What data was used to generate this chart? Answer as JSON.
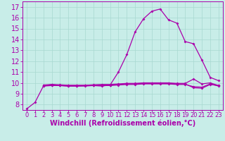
{
  "bg_color": "#c8ede8",
  "grid_color": "#a8d8d0",
  "line_color": "#aa00aa",
  "marker": "D",
  "marker_size": 2.0,
  "linewidth": 0.9,
  "xlim_min": -0.5,
  "xlim_max": 23.5,
  "ylim_min": 7.5,
  "ylim_max": 17.5,
  "xticks": [
    0,
    1,
    2,
    3,
    4,
    5,
    6,
    7,
    8,
    9,
    10,
    11,
    12,
    13,
    14,
    15,
    16,
    17,
    18,
    19,
    20,
    21,
    22,
    23
  ],
  "yticks": [
    8,
    9,
    10,
    11,
    12,
    13,
    14,
    15,
    16,
    17
  ],
  "xlabel": "Windchill (Refroidissement éolien,°C)",
  "xlabel_fontsize": 7,
  "ytick_fontsize": 7,
  "xtick_fontsize": 6,
  "line1_x": [
    0,
    1,
    2,
    3,
    4,
    5,
    6,
    7,
    8,
    9,
    10,
    11,
    12,
    13,
    14,
    15,
    16,
    17,
    18,
    19,
    20,
    21,
    22,
    23
  ],
  "line1_y": [
    7.6,
    8.2,
    9.7,
    9.85,
    9.75,
    9.7,
    9.7,
    9.75,
    9.75,
    9.7,
    9.8,
    11.0,
    12.6,
    14.7,
    15.9,
    16.6,
    16.8,
    15.8,
    15.5,
    13.8,
    13.6,
    12.1,
    10.5,
    10.2
  ],
  "line2_x": [
    2,
    3,
    4,
    5,
    6,
    7,
    8,
    9,
    10,
    11,
    12,
    13,
    14,
    15,
    16,
    17,
    18,
    19,
    20,
    21,
    22,
    23
  ],
  "line2_y": [
    9.7,
    9.75,
    9.75,
    9.7,
    9.7,
    9.7,
    9.75,
    9.75,
    9.75,
    9.8,
    9.85,
    9.85,
    9.9,
    9.9,
    9.9,
    9.9,
    9.85,
    9.85,
    9.65,
    9.6,
    9.9,
    9.7
  ],
  "line3_x": [
    2,
    3,
    4,
    5,
    6,
    7,
    8,
    9,
    10,
    11,
    12,
    13,
    14,
    15,
    16,
    17,
    18,
    19,
    20,
    21,
    22,
    23
  ],
  "line3_y": [
    9.75,
    9.8,
    9.78,
    9.75,
    9.75,
    9.75,
    9.78,
    9.8,
    9.8,
    9.85,
    9.9,
    9.9,
    9.95,
    9.95,
    9.95,
    9.95,
    9.9,
    9.9,
    9.55,
    9.5,
    9.85,
    9.75
  ],
  "line4_x": [
    2,
    3,
    4,
    5,
    6,
    7,
    8,
    9,
    10,
    11,
    12,
    13,
    14,
    15,
    16,
    17,
    18,
    19,
    20,
    21,
    22,
    23
  ],
  "line4_y": [
    9.8,
    9.85,
    9.82,
    9.78,
    9.78,
    9.78,
    9.82,
    9.85,
    9.85,
    9.9,
    9.95,
    9.95,
    10.0,
    10.0,
    10.0,
    10.0,
    9.95,
    9.95,
    10.35,
    9.9,
    10.0,
    9.75
  ]
}
